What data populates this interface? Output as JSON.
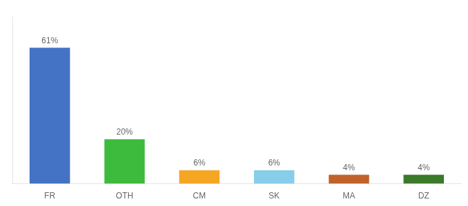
{
  "chart_data": {
    "type": "bar",
    "categories": [
      "FR",
      "OTH",
      "CM",
      "SK",
      "MA",
      "DZ"
    ],
    "values": [
      61,
      20,
      6,
      6,
      4,
      4
    ],
    "value_labels": [
      "61%",
      "20%",
      "6%",
      "6%",
      "4%",
      "4%"
    ],
    "colors": [
      "#4472c4",
      "#3dbb3d",
      "#f5a623",
      "#87ceeb",
      "#c0622a",
      "#3a7a28"
    ],
    "ylim": [
      0,
      75
    ],
    "grid": false,
    "data_labels": true,
    "tick_labels": "x"
  }
}
